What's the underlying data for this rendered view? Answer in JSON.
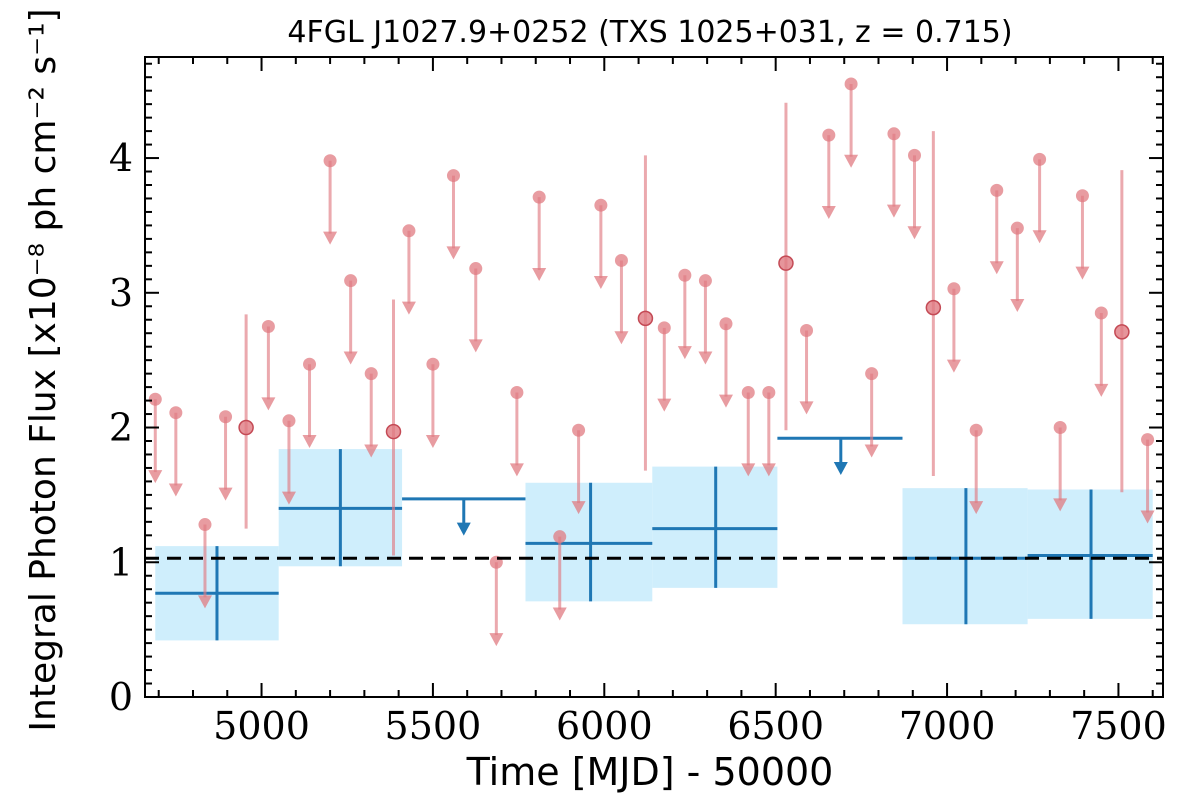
{
  "chart_data": {
    "type": "scatter",
    "title": "4FGL J1027.9+0252 (TXS 1025+031, z = 0.715)",
    "xlabel": "Time [MJD] - 50000",
    "ylabel": "Integral Photon Flux [x10⁻⁸ ph cm⁻² s⁻¹]",
    "xlim": [
      4660,
      7630
    ],
    "ylim": [
      0,
      4.75
    ],
    "xticks": [
      5000,
      5500,
      6000,
      6500,
      7000,
      7500
    ],
    "xtick_labels": [
      "5000",
      "5500",
      "6000",
      "6500",
      "7000",
      "7500"
    ],
    "yticks": [
      0,
      1,
      2,
      3,
      4
    ],
    "ytick_labels": [
      "0",
      "1",
      "2",
      "3",
      "4"
    ],
    "grid": false,
    "reference_line": {
      "y": 1.03,
      "style": "dashed",
      "color": "#000000"
    },
    "colors": {
      "monthly": "#e07b82",
      "yearly": "#1f77b4",
      "yearly_band": "#cfeefc"
    },
    "series": [
      {
        "binning": "monthly",
        "detections": [
          {
            "x": 4955,
            "y": 2.0,
            "yerr_low": 0.75,
            "yerr_high": 0.84
          },
          {
            "x": 5385,
            "y": 1.97,
            "yerr_low": 0.92,
            "yerr_high": 0.98
          },
          {
            "x": 6120,
            "y": 2.81,
            "yerr_low": 1.13,
            "yerr_high": 1.21
          },
          {
            "x": 6530,
            "y": 3.22,
            "yerr_low": 1.24,
            "yerr_high": 1.19
          },
          {
            "x": 6960,
            "y": 2.89,
            "yerr_low": 1.25,
            "yerr_high": 1.31
          },
          {
            "x": 7510,
            "y": 2.71,
            "yerr_low": 1.19,
            "yerr_high": 1.2
          }
        ],
        "upper_limits": [
          {
            "x": 4690,
            "y": 2.21
          },
          {
            "x": 4750,
            "y": 2.11
          },
          {
            "x": 4835,
            "y": 1.28
          },
          {
            "x": 4895,
            "y": 2.08
          },
          {
            "x": 5020,
            "y": 2.75
          },
          {
            "x": 5080,
            "y": 2.05
          },
          {
            "x": 5140,
            "y": 2.47
          },
          {
            "x": 5200,
            "y": 3.98
          },
          {
            "x": 5260,
            "y": 3.09
          },
          {
            "x": 5320,
            "y": 2.4
          },
          {
            "x": 5430,
            "y": 3.46
          },
          {
            "x": 5500,
            "y": 2.47
          },
          {
            "x": 5560,
            "y": 3.87
          },
          {
            "x": 5625,
            "y": 3.18
          },
          {
            "x": 5685,
            "y": 1.0
          },
          {
            "x": 5745,
            "y": 2.26
          },
          {
            "x": 5810,
            "y": 3.71
          },
          {
            "x": 5870,
            "y": 1.19
          },
          {
            "x": 5925,
            "y": 1.98
          },
          {
            "x": 5990,
            "y": 3.65
          },
          {
            "x": 6050,
            "y": 3.24
          },
          {
            "x": 6175,
            "y": 2.74
          },
          {
            "x": 6235,
            "y": 3.13
          },
          {
            "x": 6295,
            "y": 3.09
          },
          {
            "x": 6355,
            "y": 2.77
          },
          {
            "x": 6420,
            "y": 2.26
          },
          {
            "x": 6480,
            "y": 2.26
          },
          {
            "x": 6590,
            "y": 2.72
          },
          {
            "x": 6655,
            "y": 4.17
          },
          {
            "x": 6720,
            "y": 4.55
          },
          {
            "x": 6780,
            "y": 2.4
          },
          {
            "x": 6845,
            "y": 4.18
          },
          {
            "x": 6905,
            "y": 4.02
          },
          {
            "x": 7020,
            "y": 3.03
          },
          {
            "x": 7085,
            "y": 1.98
          },
          {
            "x": 7145,
            "y": 3.76
          },
          {
            "x": 7205,
            "y": 3.48
          },
          {
            "x": 7270,
            "y": 3.99
          },
          {
            "x": 7330,
            "y": 2.0
          },
          {
            "x": 7395,
            "y": 3.72
          },
          {
            "x": 7450,
            "y": 2.85
          },
          {
            "x": 7585,
            "y": 1.91
          }
        ]
      },
      {
        "binning": "yearly",
        "detections": [
          {
            "x": 4870,
            "xmin": 4690,
            "xmax": 5050,
            "y": 0.77,
            "ymin": 0.42,
            "ymax": 1.12
          },
          {
            "x": 5230,
            "xmin": 5050,
            "xmax": 5410,
            "y": 1.4,
            "ymin": 0.97,
            "ymax": 1.84
          },
          {
            "x": 5960,
            "xmin": 5770,
            "xmax": 6140,
            "y": 1.14,
            "ymin": 0.71,
            "ymax": 1.59
          },
          {
            "x": 6325,
            "xmin": 6140,
            "xmax": 6505,
            "y": 1.25,
            "ymin": 0.81,
            "ymax": 1.71
          },
          {
            "x": 7055,
            "xmin": 6870,
            "xmax": 7235,
            "y": 1.03,
            "ymin": 0.54,
            "ymax": 1.55
          },
          {
            "x": 7420,
            "xmin": 7235,
            "xmax": 7600,
            "y": 1.05,
            "ymin": 0.58,
            "ymax": 1.54
          }
        ],
        "upper_limits": [
          {
            "x": 5590,
            "xmin": 5410,
            "xmax": 5770,
            "y": 1.47
          },
          {
            "x": 6690,
            "xmin": 6505,
            "xmax": 6870,
            "y": 1.92
          }
        ]
      }
    ]
  }
}
